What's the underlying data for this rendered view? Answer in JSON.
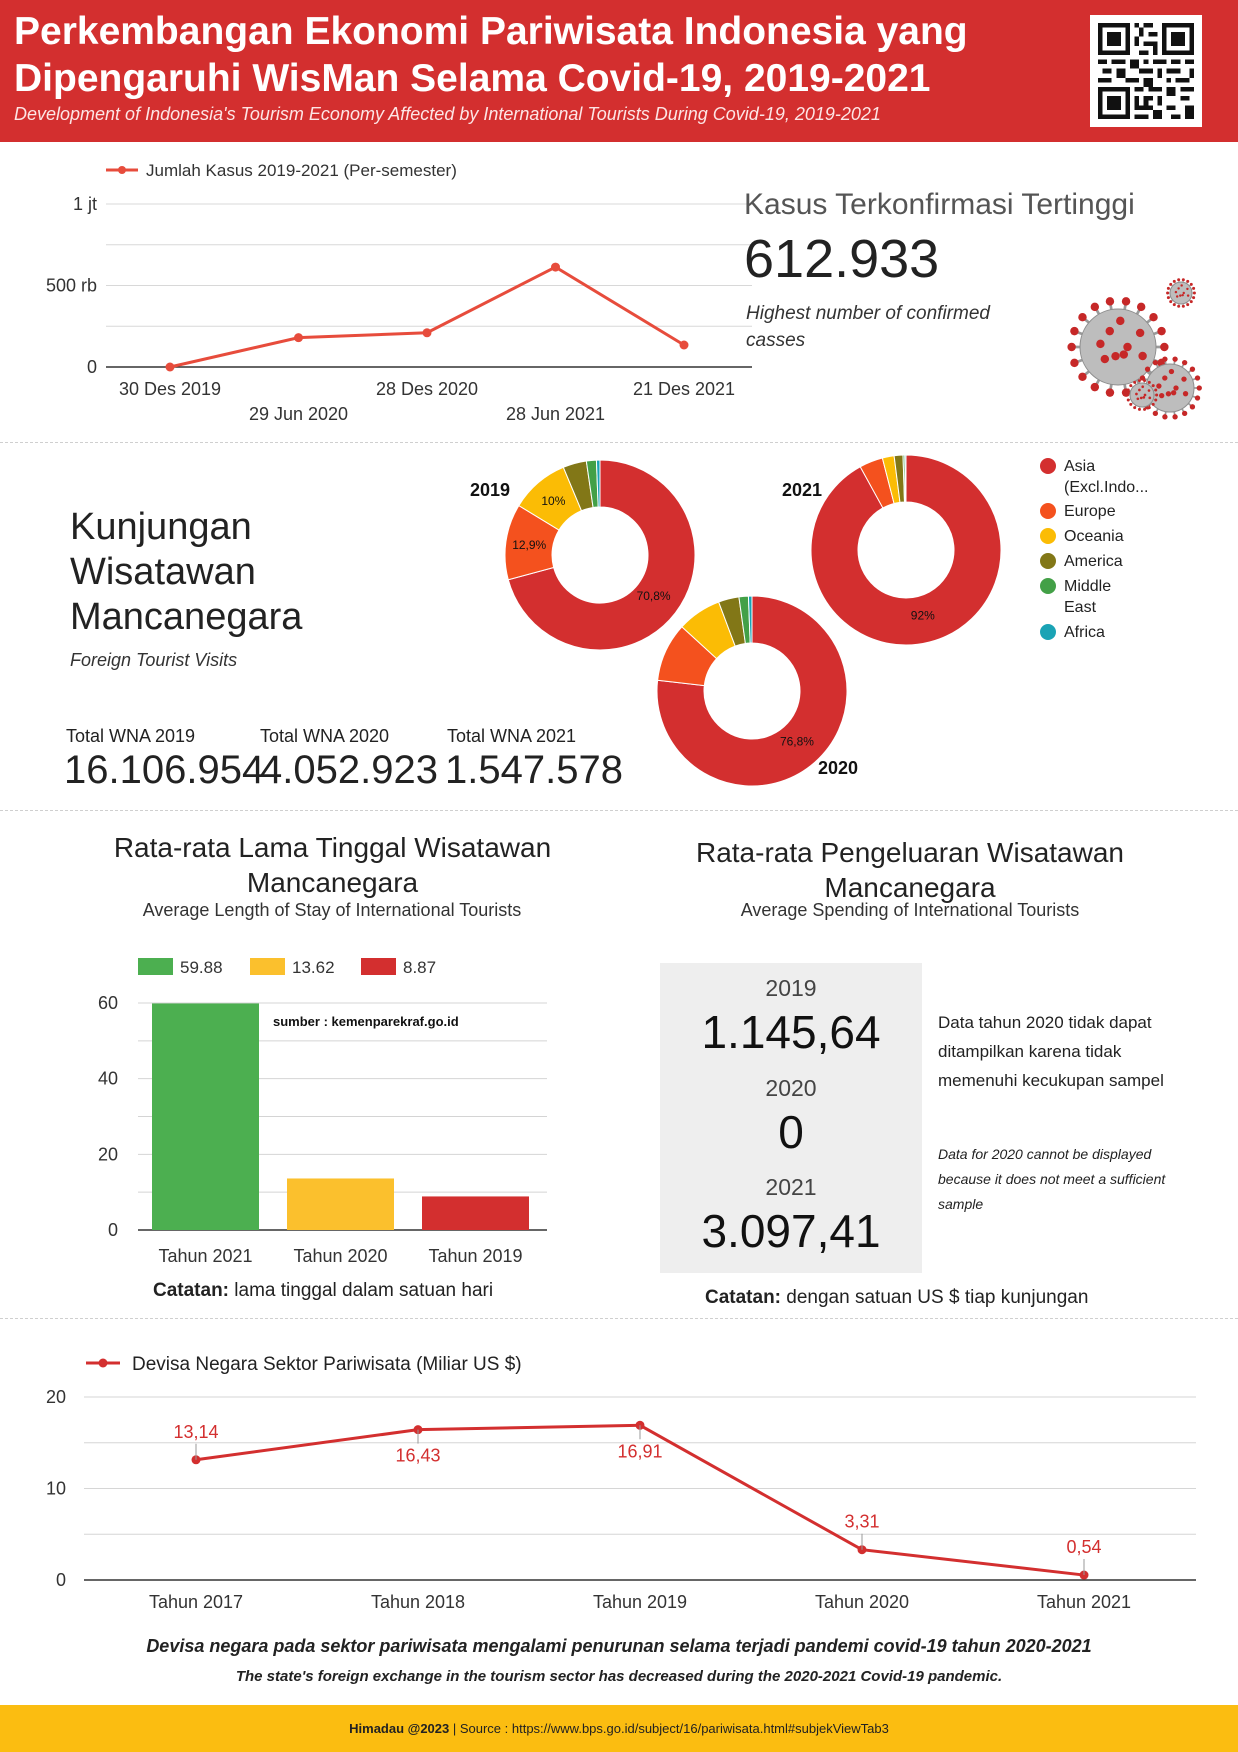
{
  "header": {
    "title_line1": "Perkembangan Ekonomi Pariwisata Indonesia yang",
    "title_line2": "Dipengaruhi WisMan Selama Covid-19, 2019-2021",
    "subtitle": "Development of Indonesia's Tourism Economy Affected by International Tourists During Covid-19, 2019-2021"
  },
  "highest_cases": {
    "label": "Kasus Terkonfirmasi Tertinggi",
    "value": "612.933",
    "label_en": "Highest number of confirmed casses"
  },
  "visits": {
    "title": "Kunjungan Wisatawan Mancanegara",
    "subtitle_en": "Foreign Tourist Visits",
    "totals": [
      {
        "label": "Total WNA 2019",
        "value": "16.106.954",
        "color": "#4caf50"
      },
      {
        "label": "Total WNA 2020",
        "value": "4.052.923",
        "color": "#fbc02d"
      },
      {
        "label": "Total WNA 2021",
        "value": "1.547.578",
        "color": "#e53935"
      }
    ],
    "legend": [
      {
        "label": "Asia (Excl.Indo...",
        "color": "#d32f2f"
      },
      {
        "label": "Europe",
        "color": "#f4511e"
      },
      {
        "label": "Oceania",
        "color": "#fbbc05"
      },
      {
        "label": "America",
        "color": "#827717"
      },
      {
        "label": "Middle East",
        "color": "#43a047"
      },
      {
        "label": "Africa",
        "color": "#1aa3b5"
      }
    ]
  },
  "stay": {
    "title": "Rata-rata Lama Tinggal Wisatawan Mancanegara",
    "subtitle_en": "Average Length of Stay of International Tourists",
    "source": "sumber : kemenparekraf.go.id",
    "note_bold": "Catatan:",
    "note_text": " lama tinggal dalam satuan hari"
  },
  "spending": {
    "title": "Rata-rata Pengeluaran Wisatawan Mancanegara",
    "subtitle_en": "Average Spending of International Tourists",
    "items": [
      {
        "year": "2019",
        "value": "1.145,64"
      },
      {
        "year": "2020",
        "value": "0"
      },
      {
        "year": "2021",
        "value": "3.097,41"
      }
    ],
    "note_id": "Data tahun 2020 tidak dapat ditampilkan karena tidak memenuhi kecukupan sampel",
    "note_en": "Data for 2020 cannot be displayed because it does not meet a sufficient sample",
    "note_bold": "Catatan:",
    "note_text": " dengan satuan US $ tiap kunjungan"
  },
  "devisa": {
    "caption": "Devisa negara pada sektor pariwisata mengalami penurunan selama terjadi pandemi covid-19 tahun 2020-2021",
    "caption_en": "The state's foreign exchange in the tourism sector has decreased during the 2020-2021 Covid-19 pandemic."
  },
  "footer": {
    "brand": "Himadau @2023",
    "source": " | Source : https://www.bps.go.id/subject/16/pariwisata.html#subjekViewTab3"
  },
  "chart_data": [
    {
      "type": "line",
      "series": [
        {
          "name": "Jumlah Kasus 2019-2021 (Per-semester)",
          "values": [
            0,
            180000,
            210000,
            612933,
            135000
          ],
          "color": "#e74c3c"
        }
      ],
      "x": [
        "30 Des 2019",
        "29 Jun 2020",
        "28 Des 2020",
        "28 Jun 2021",
        "21 Des 2021"
      ],
      "ytick_labels": [
        "0",
        "500 rb",
        "1 jt"
      ],
      "ylim": [
        0,
        1000000
      ],
      "grid": true,
      "legend": "top-left"
    },
    {
      "type": "pie",
      "title": "2019",
      "categories": [
        "Asia (Excl.Indo...",
        "Europe",
        "Oceania",
        "America",
        "Middle East",
        "Africa"
      ],
      "values": [
        70.8,
        12.9,
        10,
        4,
        1.7,
        0.6
      ],
      "data_labels": [
        "70,8%",
        "12,9%",
        "10%",
        "",
        "",
        ""
      ]
    },
    {
      "type": "pie",
      "title": "2020",
      "categories": [
        "Asia (Excl.Indo...",
        "Europe",
        "Oceania",
        "America",
        "Middle East",
        "Africa"
      ],
      "values": [
        76.8,
        10,
        7.5,
        3.5,
        1.6,
        0.6
      ],
      "data_labels": [
        "76,8%",
        "",
        "",
        "",
        "",
        ""
      ]
    },
    {
      "type": "pie",
      "title": "2021",
      "categories": [
        "Asia (Excl.Indo...",
        "Europe",
        "Oceania",
        "America",
        "Middle East",
        "Africa"
      ],
      "values": [
        92,
        4,
        2,
        1.5,
        0.3,
        0.2
      ],
      "data_labels": [
        "92%",
        "",
        "",
        "",
        "",
        ""
      ]
    },
    {
      "type": "bar",
      "categories": [
        "Tahun 2021",
        "Tahun 2020",
        "Tahun 2019"
      ],
      "values": [
        59.88,
        13.62,
        8.87
      ],
      "colors": [
        "#4caf50",
        "#fbc02d",
        "#d32f2f"
      ],
      "legend_labels": [
        "59.88",
        "13.62",
        "8.87"
      ],
      "ylim": [
        0,
        60
      ],
      "yticks": [
        0,
        20,
        40,
        60
      ],
      "grid": true,
      "legend": "top"
    },
    {
      "type": "line",
      "series": [
        {
          "name": "Devisa Negara Sektor Pariwisata (Miliar US $)",
          "values": [
            13.14,
            16.43,
            16.91,
            3.31,
            0.54
          ],
          "labels": [
            "13,14",
            "16,43",
            "16,91",
            "3,31",
            "0,54"
          ],
          "color": "#d32f2f"
        }
      ],
      "x": [
        "Tahun 2017",
        "Tahun 2018",
        "Tahun 2019",
        "Tahun 2020",
        "Tahun 2021"
      ],
      "yticks": [
        0,
        10,
        20
      ],
      "ylim": [
        0,
        20
      ],
      "grid": true,
      "legend": "top-left"
    }
  ]
}
